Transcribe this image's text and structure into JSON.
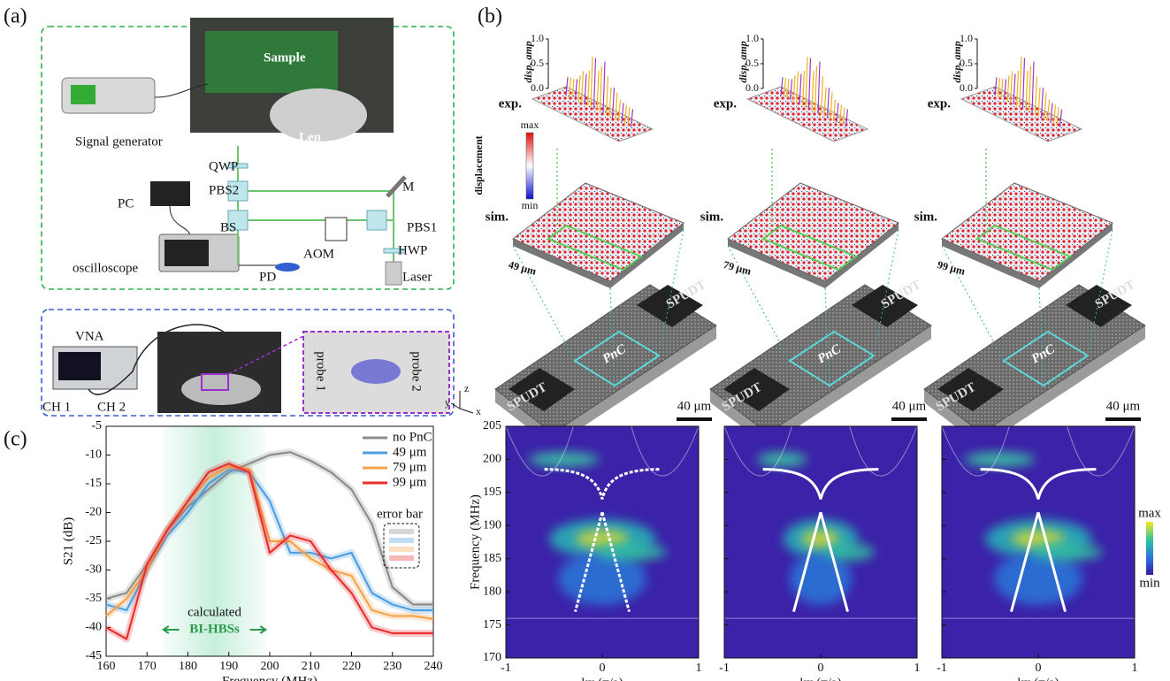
{
  "panel_a": {
    "label": "(a)",
    "setup_labels": [
      "Signal generator",
      "Sample",
      "Len",
      "QWP",
      "PBS2",
      "M",
      "PC",
      "BS",
      "PBS1",
      "AOM",
      "HWP",
      "oscilloscope",
      "PD",
      "Laser"
    ],
    "vna_labels": [
      "VNA",
      "CH 1",
      "CH 2",
      "probe 1",
      "probe 2"
    ]
  },
  "panel_b": {
    "label": "(b)",
    "colorbar": {
      "title": "displacement",
      "max": "max",
      "min": "min"
    },
    "triad": [
      "z",
      "y",
      "x"
    ],
    "devices": [
      {
        "exp": "exp.",
        "sim": "sim.",
        "size": "49 μm",
        "pnc": "PnC",
        "spudt": "SPUDT",
        "scale_bar": "40 μm",
        "amp_axis": "disp. amp",
        "amp_ticks": [
          {
            "value": 0,
            "label": "0.0"
          },
          0.5,
          {
            "value": 1,
            "label": "1.0"
          }
        ]
      },
      {
        "exp": "exp.",
        "sim": "sim.",
        "size": "79 μm",
        "pnc": "PnC",
        "spudt": "SPUDT",
        "scale_bar": "40 μm",
        "amp_axis": "disp. amp",
        "amp_ticks": [
          {
            "value": 0,
            "label": "0.0"
          },
          0.5,
          {
            "value": 1,
            "label": "1.0"
          }
        ]
      },
      {
        "exp": "exp.",
        "sim": "sim.",
        "size": "99 μm",
        "pnc": "PnC",
        "spudt": "SPUDT",
        "scale_bar": "40 μm",
        "amp_axis": "disp. amp",
        "amp_ticks": [
          {
            "value": 0,
            "label": "0.0"
          },
          0.5,
          {
            "value": 1,
            "label": "1.0"
          }
        ]
      }
    ]
  },
  "panel_c": {
    "label": "(c)"
  },
  "chart_data": [
    {
      "type": "line",
      "xlabel": "Frequency (MHz)",
      "ylabel": "S21 (dB)",
      "x": [
        160,
        165,
        170,
        175,
        180,
        185,
        190,
        195,
        200,
        205,
        210,
        215,
        220,
        225,
        230,
        235,
        240
      ],
      "series": [
        {
          "name": "no PnC",
          "color": "#8c8c8c",
          "values": [
            -35,
            -34,
            -29,
            -23,
            -19,
            -16,
            -13,
            -11.5,
            -10,
            -9.5,
            -11,
            -13,
            -16,
            -22,
            -33,
            -36,
            -36
          ]
        },
        {
          "name": "49 μm",
          "color": "#4f9fe0",
          "values": [
            -36,
            -37,
            -30,
            -24,
            -20,
            -15,
            -12.5,
            -13,
            -18,
            -27,
            -27,
            -28,
            -27,
            -34,
            -36,
            -37,
            -37
          ]
        },
        {
          "name": "79 μm",
          "color": "#f5a34a",
          "values": [
            -38,
            -35,
            -30,
            -23,
            -18,
            -14,
            -12,
            -12.5,
            -25,
            -25,
            -28,
            -30,
            -31,
            -37,
            -38,
            -38,
            -38.5
          ]
        },
        {
          "name": "99 μm",
          "color": "#e8312f",
          "values": [
            -40,
            -42,
            -29,
            -23,
            -18,
            -13,
            -11.5,
            -13,
            -27,
            -24,
            -25,
            -30,
            -34,
            -40,
            -41,
            -41,
            -41
          ]
        }
      ],
      "xlim": [
        160,
        240
      ],
      "ylim": [
        -45,
        -5
      ],
      "xticks": [
        160,
        170,
        180,
        190,
        200,
        210,
        220,
        230,
        240
      ],
      "yticks": [
        -45,
        -40,
        -35,
        -30,
        -25,
        -20,
        -15,
        -10,
        -5
      ],
      "legend": "upper right",
      "highlight_xrange": [
        174,
        199
      ],
      "annotations": [
        "calculated",
        "BI-HBSs",
        "error bar"
      ]
    },
    {
      "type": "heatmap",
      "xlabel": "kx (π/a)",
      "ylabel": "Frequency (MHz)",
      "xlim": [
        -1,
        1
      ],
      "xticks": [
        -1,
        0,
        1
      ],
      "ylim": [
        170,
        205
      ],
      "yticks": [
        170,
        175,
        180,
        185,
        190,
        195,
        200,
        205
      ]
    },
    {
      "type": "heatmap",
      "xlabel": "kx (π/a)",
      "xlim": [
        -1,
        1
      ],
      "xticks": [
        -1,
        0,
        1
      ]
    },
    {
      "type": "heatmap",
      "xlabel": "kx (π/a)",
      "xlim": [
        -1,
        1
      ],
      "xticks": [
        -1,
        0,
        1
      ],
      "colorbar": [
        "max",
        "min"
      ]
    }
  ]
}
